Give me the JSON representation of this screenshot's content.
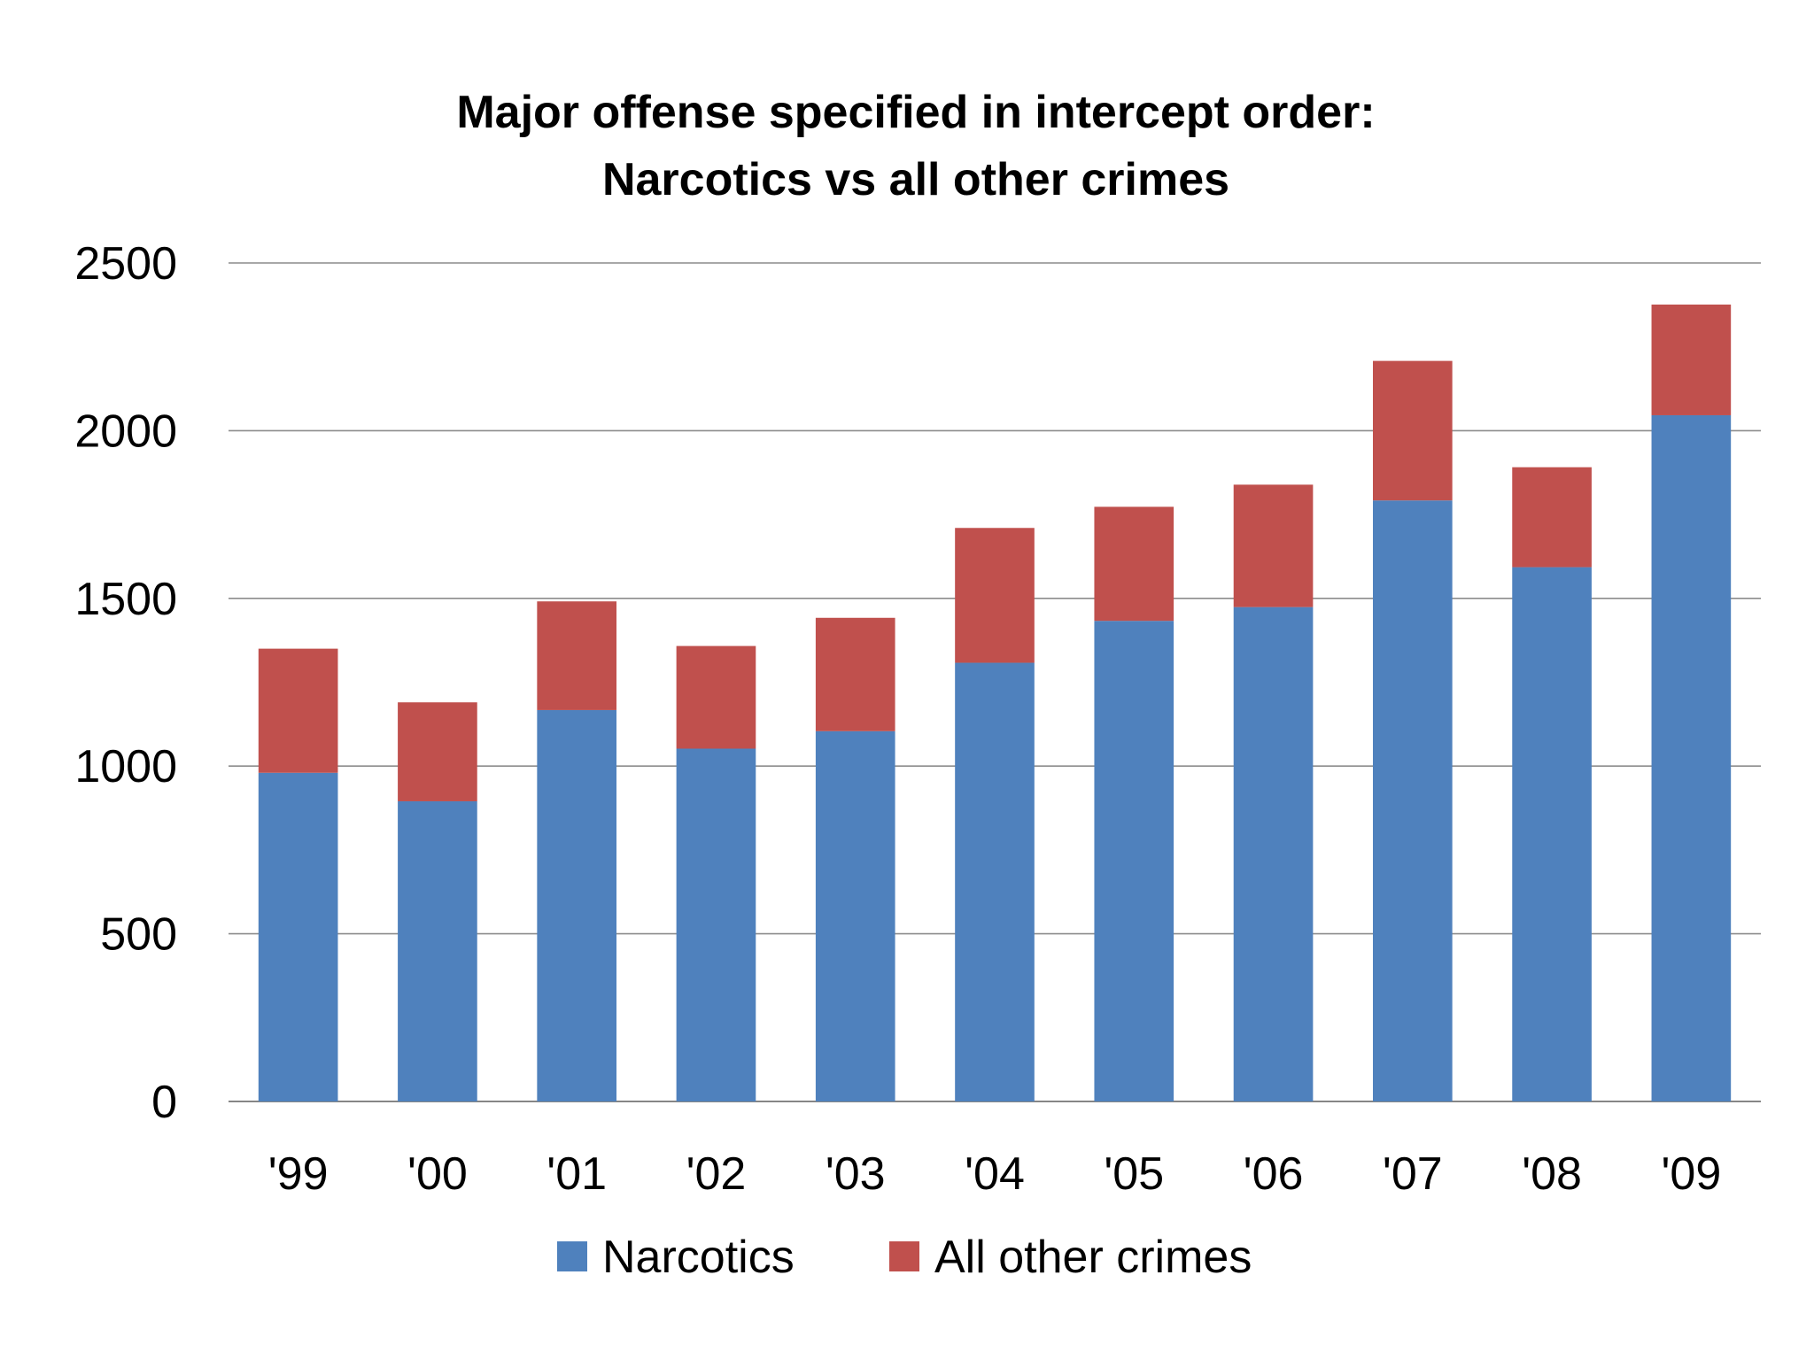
{
  "chart_data": {
    "type": "bar",
    "stacked": true,
    "title_lines": [
      "Major offense specified in intercept order:",
      "Narcotics vs all other crimes"
    ],
    "categories": [
      "'99",
      "'00",
      "'01",
      "'02",
      "'03",
      "'04",
      "'05",
      "'06",
      "'07",
      "'08",
      "'09"
    ],
    "series": [
      {
        "name": "Narcotics",
        "color": "#4F81BD",
        "values": [
          980,
          895,
          1167,
          1052,
          1104,
          1308,
          1433,
          1474,
          1792,
          1593,
          2046
        ]
      },
      {
        "name": "All other crimes",
        "color": "#C0504D",
        "values": [
          370,
          295,
          324,
          306,
          338,
          402,
          340,
          365,
          416,
          298,
          330
        ]
      }
    ],
    "y_ticks": [
      "0",
      "500",
      "1000",
      "1500",
      "2000",
      "2500"
    ],
    "ylim": [
      0,
      2500
    ],
    "grid": true,
    "legend_position": "bottom"
  }
}
